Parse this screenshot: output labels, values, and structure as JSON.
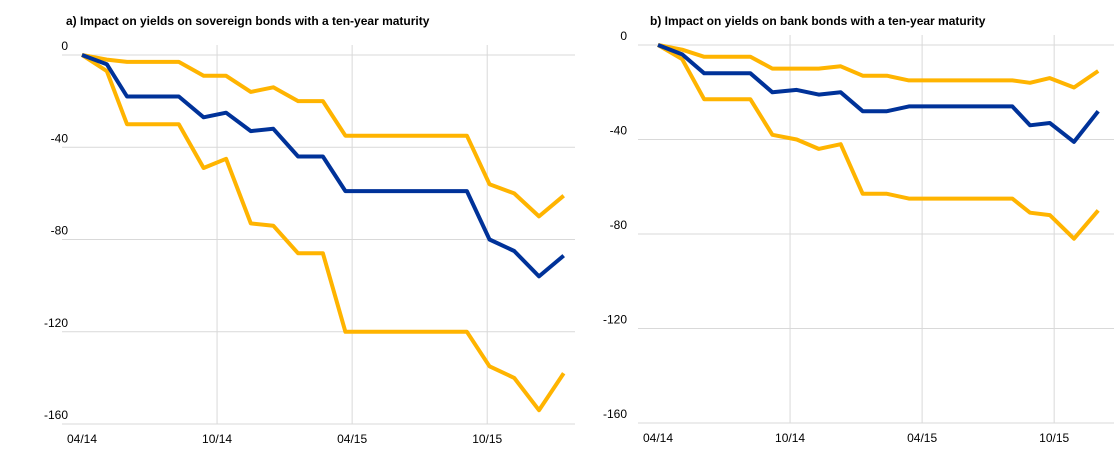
{
  "chart_data": [
    {
      "type": "line",
      "title": "a) Impact on yields on sovereign bonds with a ten-year maturity",
      "x": [
        0,
        1.1,
        2.0,
        4.3,
        5.4,
        6.4,
        7.5,
        8.5,
        9.6,
        10.7,
        11.7,
        17.1,
        18.1,
        19.2,
        20.3,
        21.4
      ],
      "series": [
        {
          "color": "#ffb400",
          "values": [
            0,
            -2,
            -3,
            -3,
            -9,
            -9,
            -16,
            -14,
            -20,
            -20,
            -35,
            -35,
            -56,
            -60,
            -70,
            -61
          ]
        },
        {
          "color": "#ffb400",
          "values": [
            0,
            -7,
            -30,
            -30,
            -49,
            -45,
            -73,
            -74,
            -86,
            -86,
            -120,
            -120,
            -135,
            -140,
            -154,
            -138
          ]
        },
        {
          "color": "#003299",
          "values": [
            0,
            -4,
            -18,
            -18,
            -27,
            -25,
            -33,
            -32,
            -44,
            -44,
            -59,
            -59,
            -80,
            -85,
            -96,
            -87
          ]
        }
      ],
      "xlim": [
        0,
        21.9
      ],
      "xticks": [
        {
          "value": 0,
          "label": "04/14"
        },
        {
          "value": 6,
          "label": "10/14"
        },
        {
          "value": 12,
          "label": "04/15"
        },
        {
          "value": 18,
          "label": "10/15"
        }
      ],
      "ylim": [
        -160,
        0
      ],
      "yticks": [
        -160,
        -120,
        -80,
        -40,
        0
      ],
      "grid": true
    },
    {
      "type": "line",
      "title": "b) Impact on yields on bank bonds with a ten-year maturity",
      "x": [
        0,
        1.1,
        2.1,
        4.2,
        5.2,
        6.3,
        7.3,
        8.3,
        9.3,
        10.4,
        11.4,
        16.1,
        16.9,
        17.8,
        18.9,
        20.0
      ],
      "series": [
        {
          "color": "#ffb400",
          "values": [
            0,
            -2,
            -5,
            -5,
            -10,
            -10,
            -10,
            -9,
            -13,
            -13,
            -15,
            -15,
            -16,
            -14,
            -18,
            -11
          ]
        },
        {
          "color": "#ffb400",
          "values": [
            0,
            -6,
            -23,
            -23,
            -38,
            -40,
            -44,
            -42,
            -63,
            -63,
            -65,
            -65,
            -71,
            -72,
            -82,
            -70
          ]
        },
        {
          "color": "#003299",
          "values": [
            0,
            -4,
            -12,
            -12,
            -20,
            -19,
            -21,
            -20,
            -28,
            -28,
            -26,
            -26,
            -34,
            -33,
            -41,
            -28
          ]
        }
      ],
      "xlim": [
        0,
        21.9
      ],
      "xticks": [
        {
          "value": 0,
          "label": "04/14"
        },
        {
          "value": 6,
          "label": "10/14"
        },
        {
          "value": 12,
          "label": "04/15"
        },
        {
          "value": 18,
          "label": "10/15"
        }
      ],
      "ylim": [
        -160,
        0
      ],
      "yticks": [
        -160,
        -120,
        -80,
        -40,
        0
      ],
      "grid": true
    }
  ]
}
